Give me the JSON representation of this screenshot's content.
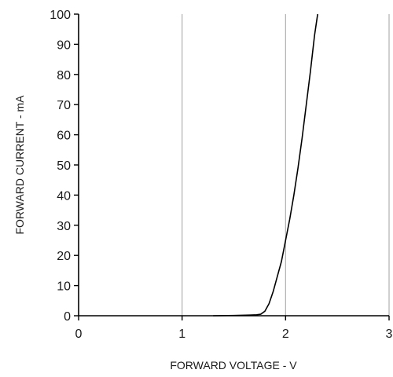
{
  "chart_data": {
    "type": "line",
    "title": "",
    "xlabel": "FORWARD VOLTAGE - V",
    "ylabel": "FORWARD CURRENT - mA",
    "xlim": [
      0,
      3
    ],
    "ylim": [
      0,
      100
    ],
    "x_ticks": [
      0,
      1,
      2,
      3
    ],
    "y_ticks": [
      0,
      10,
      20,
      30,
      40,
      50,
      60,
      70,
      80,
      90,
      100
    ],
    "x_tick_labels": [
      "0",
      "1",
      "2",
      "3"
    ],
    "y_tick_labels": [
      "0",
      "10",
      "20",
      "30",
      "40",
      "50",
      "60",
      "70",
      "80",
      "90",
      "100"
    ],
    "grid": true,
    "legend": "none",
    "line_color": "#000000",
    "grid_color": "#b0b0b0",
    "series": [
      {
        "x": [
          1.3,
          1.5,
          1.65,
          1.72,
          1.76,
          1.8,
          1.84,
          1.88,
          1.92,
          1.96,
          2.0,
          2.04,
          2.08,
          2.12,
          2.16,
          2.2,
          2.24,
          2.28,
          2.31
        ],
        "y": [
          0.0,
          0.1,
          0.2,
          0.3,
          0.5,
          1.5,
          4,
          8,
          13,
          18,
          25,
          32,
          40,
          49,
          59,
          70,
          81,
          93,
          100
        ]
      }
    ]
  }
}
